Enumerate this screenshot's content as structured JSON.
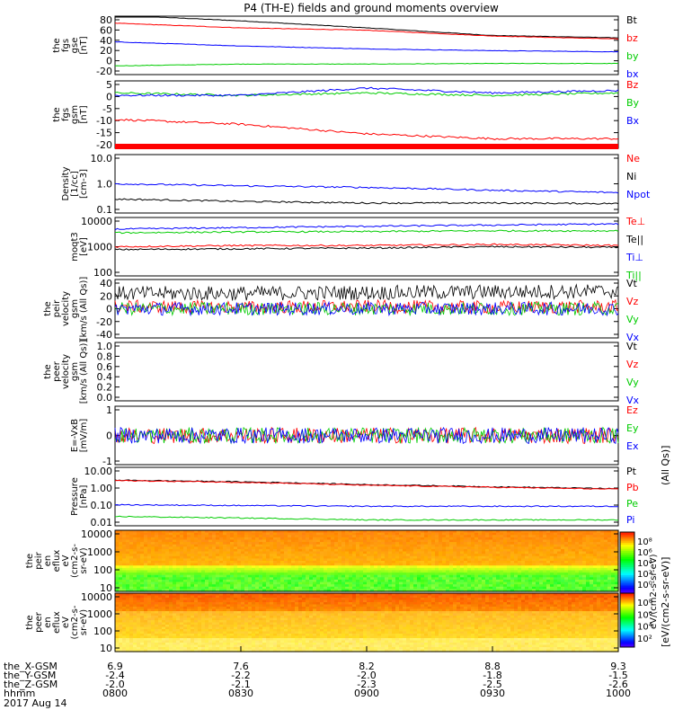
{
  "title": "P4 (TH-E) fields and ground moments overview",
  "colors": {
    "black": "#000000",
    "red": "#ff0000",
    "green": "#00cc00",
    "blue": "#0000ff"
  },
  "time_axis": {
    "tick_labels": [
      {
        "rows": [
          "6.9",
          "-2.4",
          "-2.0",
          "0800"
        ]
      },
      {
        "rows": [
          "7.6",
          "-2.2",
          "-2.1",
          "0830"
        ]
      },
      {
        "rows": [
          "8.2",
          "-2.0",
          "-2.3",
          "0900"
        ]
      },
      {
        "rows": [
          "8.8",
          "-1.8",
          "-2.5",
          "0930"
        ]
      },
      {
        "rows": [
          "9.3",
          "-1.5",
          "-2.6",
          "1000"
        ]
      }
    ],
    "row_labels": [
      "the_X-GSM",
      "the_Y-GSM",
      "the_Z-GSM",
      "hhmm"
    ],
    "date": "2017 Aug 14"
  },
  "colorbar": {
    "label": "[eV/(cm2-s-sr-eV)]",
    "label_overlap": "eV/(cm2-s-sr-eV)",
    "unit_suffix": "(All Qs)]",
    "ticks_top": [
      "10⁸",
      "10⁶",
      "10⁴",
      "10²",
      "10⁰"
    ],
    "ticks_bottom": [
      "10⁸",
      "10⁶",
      "10⁴",
      "10²"
    ]
  },
  "chart_data": [
    {
      "type": "line",
      "ylabel": [
        "the",
        "fgs",
        "gse",
        "[nT]"
      ],
      "yticks": [
        "80",
        "60",
        "40",
        "20",
        "0",
        "-20"
      ],
      "ylim": [
        -20,
        80
      ],
      "x": [
        0,
        30,
        60,
        90,
        120
      ],
      "legend": [
        {
          "name": "Bt",
          "color": "black"
        },
        {
          "name": "bz",
          "color": "red"
        },
        {
          "name": "by",
          "color": "green"
        },
        {
          "name": "bx",
          "color": "blue"
        }
      ],
      "series": [
        {
          "name": "Bt",
          "color": "black",
          "values": [
            82,
            72,
            60,
            47,
            43
          ]
        },
        {
          "name": "bz",
          "color": "red",
          "values": [
            68,
            60,
            56,
            46,
            41
          ]
        },
        {
          "name": "by",
          "color": "green",
          "values": [
            -5,
            -2,
            -2,
            -1,
            -1
          ]
        },
        {
          "name": "bx",
          "color": "blue",
          "values": [
            36,
            29,
            24,
            21,
            19
          ]
        }
      ]
    },
    {
      "type": "line",
      "ylabel": [
        "the",
        "fgs",
        "gsm",
        "[nT]"
      ],
      "yticks": [
        "5",
        "0",
        "-5",
        "-10",
        "-15",
        "-20"
      ],
      "ylim": [
        -22,
        6
      ],
      "x": [
        0,
        30,
        60,
        90,
        120
      ],
      "legend": [
        {
          "name": "Bz",
          "color": "red"
        },
        {
          "name": "By",
          "color": "green"
        },
        {
          "name": "Bx",
          "color": "blue"
        }
      ],
      "series": [
        {
          "name": "Bz",
          "color": "red",
          "values": [
            -10,
            -12,
            -16,
            -18,
            -18
          ]
        },
        {
          "name": "By",
          "color": "green",
          "values": [
            1,
            0,
            1,
            0,
            1
          ]
        },
        {
          "name": "Bx",
          "color": "blue",
          "values": [
            0,
            0,
            3,
            1,
            2
          ]
        }
      ]
    },
    {
      "type": "line",
      "ylabel": [
        "Density",
        "[1/cc]",
        "[cm-3]"
      ],
      "yticks": [
        "10.0",
        "1.0",
        "0.1"
      ],
      "ylim": [
        0.1,
        10
      ],
      "log": true,
      "x": [
        0,
        30,
        60,
        90,
        120
      ],
      "legend": [
        {
          "name": "Ne",
          "color": "red"
        },
        {
          "name": "Ni",
          "color": "black"
        },
        {
          "name": "Npot",
          "color": "blue"
        }
      ],
      "series": [
        {
          "name": "Ni",
          "color": "black",
          "values": [
            0.3,
            0.25,
            0.22,
            0.22,
            0.21
          ]
        },
        {
          "name": "Npot",
          "color": "blue",
          "values": [
            1.0,
            0.85,
            0.75,
            0.6,
            0.5
          ]
        }
      ]
    },
    {
      "type": "line",
      "ylabel": [
        "moqt3",
        "[eV]"
      ],
      "yticks": [
        "10000",
        "1000",
        "100"
      ],
      "ylim": [
        100,
        10000
      ],
      "log": true,
      "x": [
        0,
        30,
        60,
        90,
        120
      ],
      "legend": [
        {
          "name": "Te⊥",
          "color": "red"
        },
        {
          "name": "Te||",
          "color": "black"
        },
        {
          "name": "Ti⊥",
          "color": "blue"
        },
        {
          "name": "Ti||",
          "color": "green"
        }
      ],
      "series": [
        {
          "name": "Te⊥",
          "color": "red",
          "values": [
            1000,
            1100,
            1100,
            1200,
            1100
          ]
        },
        {
          "name": "Te||",
          "color": "black",
          "values": [
            800,
            850,
            900,
            1000,
            950
          ]
        },
        {
          "name": "Ti⊥",
          "color": "blue",
          "values": [
            4000,
            4500,
            5000,
            5500,
            6000
          ]
        },
        {
          "name": "Ti||",
          "color": "green",
          "values": [
            3000,
            3200,
            3300,
            3500,
            3500
          ]
        }
      ]
    },
    {
      "type": "line",
      "ylabel": [
        "the",
        "peir",
        "velocity",
        "gsm",
        "[km/s (All Qs)]"
      ],
      "yticks": [
        "40",
        "20",
        "0",
        "-20",
        "-40"
      ],
      "ylim": [
        -40,
        40
      ],
      "x": [
        0,
        30,
        60,
        90,
        120
      ],
      "legend": [
        {
          "name": "Vt",
          "color": "black"
        },
        {
          "name": "Vz",
          "color": "red"
        },
        {
          "name": "Vy",
          "color": "green"
        },
        {
          "name": "Vx",
          "color": "blue"
        }
      ],
      "series": [
        {
          "name": "Vt",
          "color": "black",
          "values": [
            15,
            15,
            16,
            17,
            18
          ]
        },
        {
          "name": "Vz",
          "color": "red",
          "values": [
            3,
            2,
            3,
            2,
            3
          ]
        },
        {
          "name": "Vy",
          "color": "green",
          "values": [
            0,
            0,
            0,
            0,
            0
          ]
        },
        {
          "name": "Vx",
          "color": "blue",
          "values": [
            0,
            0,
            0,
            0,
            0
          ]
        }
      ]
    },
    {
      "type": "line",
      "ylabel": [
        "the",
        "peer",
        "velocity",
        "gsm",
        "[km/s (All Qs)]"
      ],
      "yticks": [
        "1.0",
        "0.8",
        "0.6",
        "0.4",
        "0.2",
        "0.0"
      ],
      "ylim": [
        0,
        1
      ],
      "x": [
        0,
        30,
        60,
        90,
        120
      ],
      "legend": [
        {
          "name": "Vt",
          "color": "black"
        },
        {
          "name": "Vz",
          "color": "red"
        },
        {
          "name": "Vy",
          "color": "green"
        },
        {
          "name": "Vx",
          "color": "blue"
        }
      ],
      "series": []
    },
    {
      "type": "line",
      "ylabel": [
        "E=-VxB",
        "[mV/m]"
      ],
      "yticks": [
        "1",
        "0",
        "-1"
      ],
      "ylim": [
        -2,
        2
      ],
      "x": [
        0,
        30,
        60,
        90,
        120
      ],
      "legend": [
        {
          "name": "Ez",
          "color": "red"
        },
        {
          "name": "Ey",
          "color": "green"
        },
        {
          "name": "Ex",
          "color": "blue"
        }
      ],
      "series": [
        {
          "name": "Ez",
          "color": "red",
          "values": [
            0,
            0,
            0,
            0,
            0
          ]
        },
        {
          "name": "Ey",
          "color": "green",
          "values": [
            0,
            0,
            0,
            0,
            0
          ]
        },
        {
          "name": "Ex",
          "color": "blue",
          "values": [
            0,
            0,
            0,
            0,
            0
          ]
        }
      ]
    },
    {
      "type": "line",
      "ylabel": [
        "Pressure",
        "[nPa]"
      ],
      "yticks": [
        "10.00",
        "1.00",
        "0.10",
        "0.01"
      ],
      "ylim": [
        0.01,
        10
      ],
      "log": true,
      "x": [
        0,
        30,
        60,
        90,
        120
      ],
      "legend": [
        {
          "name": "Pt",
          "color": "black"
        },
        {
          "name": "Pb",
          "color": "red"
        },
        {
          "name": "Pe",
          "color": "green"
        },
        {
          "name": "Pi",
          "color": "blue"
        }
      ],
      "series": [
        {
          "name": "Pt",
          "color": "black",
          "values": [
            2.2,
            1.8,
            1.3,
            1.0,
            0.8
          ]
        },
        {
          "name": "Pb",
          "color": "red",
          "values": [
            2.1,
            1.7,
            1.2,
            0.95,
            0.75
          ]
        },
        {
          "name": "Pe",
          "color": "green",
          "values": [
            0.03,
            0.025,
            0.02,
            0.02,
            0.02
          ]
        },
        {
          "name": "Pi",
          "color": "blue",
          "values": [
            0.12,
            0.11,
            0.1,
            0.1,
            0.1
          ]
        }
      ]
    },
    {
      "type": "heatmap",
      "ylabel": [
        "the",
        "peir",
        "en",
        "eflux",
        "eV",
        "(cm2-s-",
        "sr-eV)"
      ],
      "yticks": [
        "10000",
        "1000",
        "100",
        "10"
      ],
      "ylim": [
        5,
        25000
      ]
    },
    {
      "type": "heatmap",
      "ylabel": [
        "the",
        "peer",
        "en",
        "eflux",
        "eV",
        "(cm2-s-",
        "sr-eV)"
      ],
      "yticks": [
        "10000",
        "1000",
        "100",
        "10"
      ],
      "ylim": [
        5,
        25000
      ]
    }
  ]
}
